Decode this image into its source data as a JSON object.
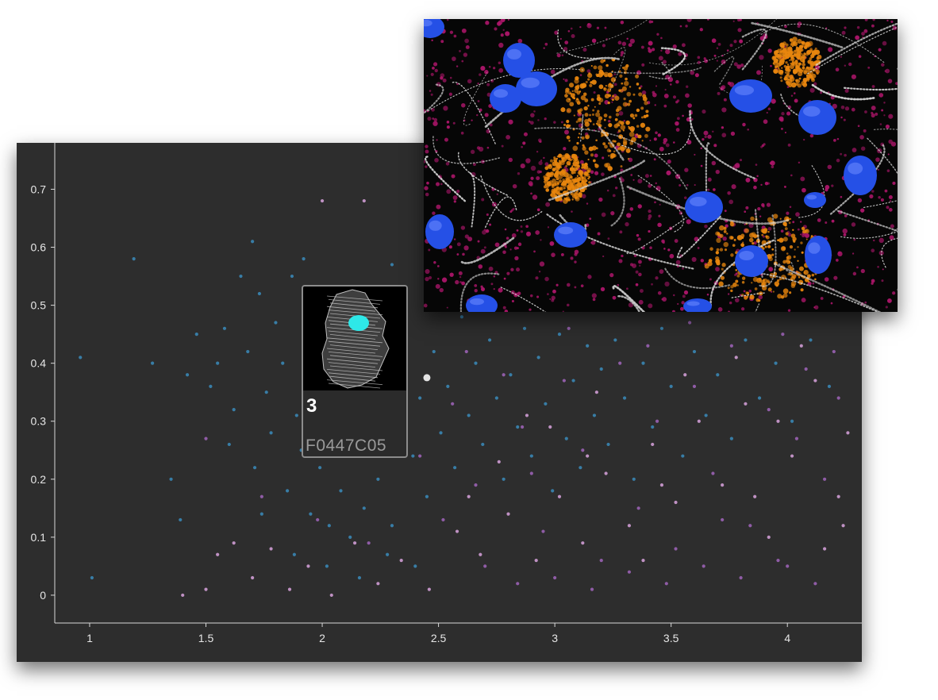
{
  "chart_data": {
    "type": "scatter",
    "title": "",
    "xlabel": "",
    "ylabel": "",
    "xlim": [
      0.85,
      4.32
    ],
    "ylim": [
      -0.048,
      0.78
    ],
    "x_ticks": [
      "1",
      "1.5",
      "2",
      "2.5",
      "3",
      "3.5",
      "4"
    ],
    "y_ticks": [
      "0",
      "0.1",
      "0.2",
      "0.3",
      "0.4",
      "0.5",
      "0.6",
      "0.7"
    ],
    "grid": false,
    "series": [
      {
        "color": "#3a86b4",
        "points": [
          [
            0.96,
            0.41
          ],
          [
            1.01,
            0.03
          ],
          [
            1.19,
            0.58
          ],
          [
            1.27,
            0.4
          ],
          [
            1.35,
            0.2
          ],
          [
            1.39,
            0.13
          ],
          [
            1.42,
            0.38
          ],
          [
            1.46,
            0.45
          ],
          [
            1.52,
            0.36
          ],
          [
            1.58,
            0.46
          ],
          [
            1.62,
            0.32
          ],
          [
            1.65,
            0.55
          ],
          [
            1.68,
            0.42
          ],
          [
            1.71,
            0.22
          ],
          [
            1.73,
            0.52
          ],
          [
            1.76,
            0.35
          ],
          [
            1.78,
            0.28
          ],
          [
            1.8,
            0.47
          ],
          [
            1.83,
            0.4
          ],
          [
            1.85,
            0.18
          ],
          [
            1.87,
            0.55
          ],
          [
            1.89,
            0.31
          ],
          [
            1.91,
            0.25
          ],
          [
            1.93,
            0.44
          ],
          [
            1.95,
            0.14
          ],
          [
            1.97,
            0.37
          ],
          [
            1.99,
            0.22
          ],
          [
            2.01,
            0.48
          ],
          [
            2.03,
            0.12
          ],
          [
            2.05,
            0.29
          ],
          [
            2.08,
            0.18
          ],
          [
            2.1,
            0.33
          ],
          [
            2.12,
            0.1
          ],
          [
            2.15,
            0.26
          ],
          [
            2.18,
            0.15
          ],
          [
            2.21,
            0.36
          ],
          [
            2.24,
            0.2
          ],
          [
            2.27,
            0.43
          ],
          [
            2.3,
            0.12
          ],
          [
            2.33,
            0.3
          ],
          [
            2.36,
            0.46
          ],
          [
            2.39,
            0.24
          ],
          [
            2.42,
            0.34
          ],
          [
            2.45,
            0.17
          ],
          [
            2.48,
            0.42
          ],
          [
            2.51,
            0.28
          ],
          [
            2.54,
            0.36
          ],
          [
            2.57,
            0.22
          ],
          [
            2.6,
            0.48
          ],
          [
            2.63,
            0.31
          ],
          [
            2.66,
            0.4
          ],
          [
            2.69,
            0.26
          ],
          [
            2.72,
            0.44
          ],
          [
            2.75,
            0.34
          ],
          [
            2.78,
            0.2
          ],
          [
            2.81,
            0.38
          ],
          [
            2.84,
            0.29
          ],
          [
            2.87,
            0.46
          ],
          [
            2.9,
            0.24
          ],
          [
            2.93,
            0.41
          ],
          [
            2.96,
            0.33
          ],
          [
            2.99,
            0.18
          ],
          [
            3.02,
            0.45
          ],
          [
            3.05,
            0.27
          ],
          [
            3.08,
            0.37
          ],
          [
            3.11,
            0.22
          ],
          [
            3.14,
            0.43
          ],
          [
            3.17,
            0.31
          ],
          [
            3.2,
            0.39
          ],
          [
            3.23,
            0.26
          ],
          [
            3.26,
            0.44
          ],
          [
            3.3,
            0.34
          ],
          [
            3.34,
            0.2
          ],
          [
            3.38,
            0.4
          ],
          [
            3.42,
            0.29
          ],
          [
            3.46,
            0.46
          ],
          [
            3.5,
            0.36
          ],
          [
            3.55,
            0.24
          ],
          [
            3.6,
            0.42
          ],
          [
            3.65,
            0.31
          ],
          [
            3.7,
            0.38
          ],
          [
            3.76,
            0.27
          ],
          [
            3.82,
            0.44
          ],
          [
            3.88,
            0.34
          ],
          [
            3.95,
            0.4
          ],
          [
            4.02,
            0.3
          ],
          [
            4.1,
            0.44
          ],
          [
            4.18,
            0.36
          ],
          [
            1.7,
            0.61
          ],
          [
            1.92,
            0.58
          ],
          [
            2.06,
            0.53
          ],
          [
            2.3,
            0.57
          ],
          [
            1.55,
            0.4
          ],
          [
            1.6,
            0.26
          ],
          [
            1.74,
            0.14
          ],
          [
            1.88,
            0.07
          ],
          [
            2.02,
            0.05
          ],
          [
            2.16,
            0.03
          ],
          [
            2.28,
            0.07
          ],
          [
            2.4,
            0.05
          ]
        ]
      },
      {
        "color": "#9a62b4",
        "points": [
          [
            1.5,
            0.27
          ],
          [
            1.74,
            0.17
          ],
          [
            1.98,
            0.13
          ],
          [
            2.2,
            0.09
          ],
          [
            2.42,
            0.24
          ],
          [
            2.56,
            0.33
          ],
          [
            2.66,
            0.19
          ],
          [
            2.78,
            0.38
          ],
          [
            2.86,
            0.29
          ],
          [
            2.95,
            0.11
          ],
          [
            3.04,
            0.37
          ],
          [
            3.12,
            0.25
          ],
          [
            3.2,
            0.06
          ],
          [
            3.28,
            0.4
          ],
          [
            3.36,
            0.15
          ],
          [
            3.44,
            0.3
          ],
          [
            3.52,
            0.08
          ],
          [
            3.6,
            0.36
          ],
          [
            3.68,
            0.21
          ],
          [
            3.76,
            0.43
          ],
          [
            3.84,
            0.12
          ],
          [
            3.92,
            0.32
          ],
          [
            4.0,
            0.05
          ],
          [
            4.08,
            0.39
          ],
          [
            4.16,
            0.2
          ],
          [
            4.22,
            0.34
          ],
          [
            2.7,
            0.05
          ],
          [
            2.84,
            0.02
          ],
          [
            3.0,
            0.03
          ],
          [
            3.16,
            0.01
          ],
          [
            3.32,
            0.04
          ],
          [
            3.48,
            0.02
          ],
          [
            3.64,
            0.05
          ],
          [
            3.8,
            0.03
          ],
          [
            3.96,
            0.06
          ],
          [
            4.12,
            0.02
          ],
          [
            2.52,
            0.13
          ],
          [
            2.9,
            0.21
          ],
          [
            3.4,
            0.43
          ],
          [
            3.72,
            0.13
          ],
          [
            4.04,
            0.27
          ],
          [
            4.2,
            0.42
          ],
          [
            3.06,
            0.46
          ],
          [
            3.58,
            0.47
          ],
          [
            3.98,
            0.45
          ],
          [
            2.62,
            0.42
          ]
        ]
      },
      {
        "color": "#cf9cd4",
        "points": [
          [
            1.4,
            0.0
          ],
          [
            1.5,
            0.01
          ],
          [
            1.55,
            0.07
          ],
          [
            1.62,
            0.09
          ],
          [
            1.7,
            0.03
          ],
          [
            1.78,
            0.08
          ],
          [
            1.86,
            0.01
          ],
          [
            1.94,
            0.05
          ],
          [
            2.04,
            0.0
          ],
          [
            2.14,
            0.09
          ],
          [
            2.24,
            0.02
          ],
          [
            2.34,
            0.06
          ],
          [
            2.46,
            0.01
          ],
          [
            2.58,
            0.11
          ],
          [
            2.68,
            0.07
          ],
          [
            2.8,
            0.14
          ],
          [
            2.92,
            0.06
          ],
          [
            3.02,
            0.17
          ],
          [
            3.12,
            0.09
          ],
          [
            3.22,
            0.21
          ],
          [
            3.32,
            0.12
          ],
          [
            3.42,
            0.26
          ],
          [
            3.52,
            0.16
          ],
          [
            3.62,
            0.3
          ],
          [
            3.72,
            0.19
          ],
          [
            3.82,
            0.33
          ],
          [
            3.92,
            0.1
          ],
          [
            4.02,
            0.24
          ],
          [
            4.12,
            0.37
          ],
          [
            4.22,
            0.17
          ],
          [
            4.26,
            0.28
          ],
          [
            2.76,
            0.23
          ],
          [
            2.98,
            0.29
          ],
          [
            3.18,
            0.35
          ],
          [
            3.38,
            0.06
          ],
          [
            3.56,
            0.38
          ],
          [
            3.78,
            0.41
          ],
          [
            3.96,
            0.3
          ],
          [
            4.16,
            0.08
          ],
          [
            4.06,
            0.43
          ],
          [
            2.63,
            0.17
          ],
          [
            2.88,
            0.31
          ],
          [
            3.14,
            0.24
          ],
          [
            3.46,
            0.19
          ],
          [
            3.86,
            0.17
          ],
          [
            4.24,
            0.12
          ],
          [
            2.0,
            0.68
          ],
          [
            2.18,
            0.68
          ]
        ]
      }
    ],
    "highlighted_point": [
      2.45,
      0.375
    ]
  },
  "hover_card": {
    "count": "3",
    "well_id": "F0447C05"
  },
  "colors": {
    "panel_background": "#2d2d2d",
    "axis": "#d8d8d8",
    "card_border": "#8c8c8c",
    "nucleus": "#2550e6",
    "sarcomere": "#d8d8d8",
    "magenta_stain": "#b0166c",
    "orange_stain": "#e8860e"
  }
}
